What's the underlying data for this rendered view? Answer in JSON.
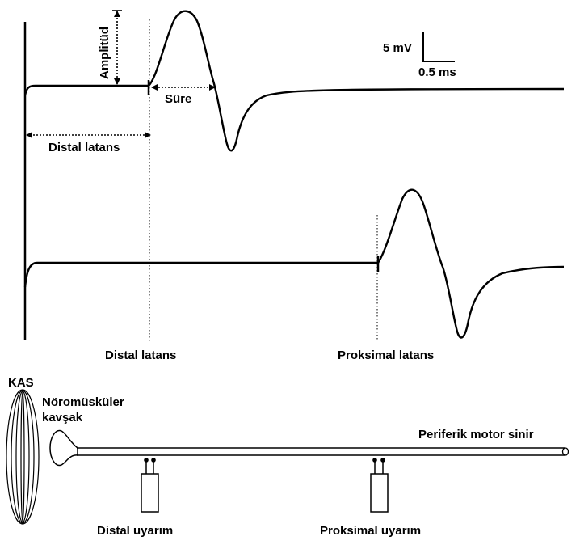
{
  "labels": {
    "amplitude": "Amplitüd",
    "duration": "Süre",
    "distal_latency_top": "Distal latans",
    "distal_latency": "Distal latans",
    "proximal_latency": "Proksimal latans",
    "muscle": "KAS",
    "nmj_line1": "Nöromüsküler",
    "nmj_line2": "kavşak",
    "nerve": "Periferik motor sinir",
    "distal_stim": "Distal uyarım",
    "proximal_stim": "Proksimal uyarım"
  },
  "scale_bar": {
    "voltage": "5 mV",
    "time": "0.5 ms"
  },
  "colors": {
    "ink": "#000000",
    "background": "#ffffff"
  }
}
